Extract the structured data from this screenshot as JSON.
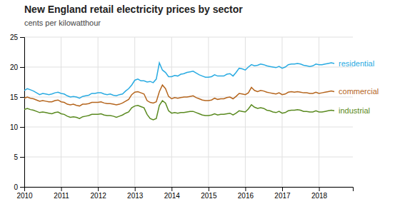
{
  "chart_data": {
    "type": "line",
    "title": "New England retail electricity prices by sector",
    "subtitle": "cents per kilowatthour",
    "x": [
      2010,
      2010.0833333333,
      2010.1666666667,
      2010.25,
      2010.3333333333,
      2010.4166666667,
      2010.5,
      2010.5833333333,
      2010.6666666667,
      2010.75,
      2010.8333333333,
      2010.9166666667,
      2011,
      2011.0833333333,
      2011.1666666667,
      2011.25,
      2011.3333333333,
      2011.4166666667,
      2011.5,
      2011.5833333333,
      2011.6666666667,
      2011.75,
      2011.8333333333,
      2011.9166666667,
      2012,
      2012.0833333333,
      2012.1666666667,
      2012.25,
      2012.3333333333,
      2012.4166666667,
      2012.5,
      2012.5833333333,
      2012.6666666667,
      2012.75,
      2012.8333333333,
      2012.9166666667,
      2013,
      2013.0833333333,
      2013.1666666667,
      2013.25,
      2013.3333333333,
      2013.4166666667,
      2013.5,
      2013.5833333333,
      2013.6666666667,
      2013.75,
      2013.8333333333,
      2013.9166666667,
      2014,
      2014.0833333333,
      2014.1666666667,
      2014.25,
      2014.3333333333,
      2014.4166666667,
      2014.5,
      2014.5833333333,
      2014.6666666667,
      2014.75,
      2014.8333333333,
      2014.9166666667,
      2015,
      2015.0833333333,
      2015.1666666667,
      2015.25,
      2015.3333333333,
      2015.4166666667,
      2015.5,
      2015.5833333333,
      2015.6666666667,
      2015.75,
      2015.8333333333,
      2015.9166666667,
      2016,
      2016.0833333333,
      2016.1666666667,
      2016.25,
      2016.3333333333,
      2016.4166666667,
      2016.5,
      2016.5833333333,
      2016.6666666667,
      2016.75,
      2016.8333333333,
      2016.9166666667,
      2017,
      2017.0833333333,
      2017.1666666667,
      2017.25,
      2017.3333333333,
      2017.4166666667,
      2017.5,
      2017.5833333333,
      2017.6666666667,
      2017.75,
      2017.8333333333,
      2017.9166666667,
      2018,
      2018.0833333333,
      2018.1666666667,
      2018.25,
      2018.3333333333,
      2018.4166666667
    ],
    "series": [
      {
        "name": "residential",
        "color": "#29abe2",
        "values": [
          16.1,
          16.4,
          16.2,
          16.0,
          15.7,
          15.4,
          15.6,
          15.5,
          15.4,
          15.5,
          15.7,
          15.8,
          15.6,
          15.5,
          15.2,
          15.0,
          15.1,
          15.0,
          14.8,
          15.1,
          15.2,
          15.3,
          15.6,
          15.6,
          15.7,
          15.7,
          15.5,
          15.4,
          15.5,
          15.3,
          15.2,
          15.4,
          15.5,
          16.0,
          16.4,
          17.0,
          17.8,
          18.0,
          17.7,
          17.7,
          17.5,
          17.6,
          17.4,
          18.0,
          20.7,
          19.5,
          19.1,
          18.4,
          18.4,
          18.6,
          18.5,
          18.8,
          18.9,
          19.1,
          19.2,
          19.3,
          19.0,
          18.7,
          18.5,
          18.3,
          18.3,
          18.4,
          18.7,
          18.5,
          18.5,
          18.5,
          18.8,
          18.9,
          18.5,
          19.1,
          19.8,
          19.7,
          19.5,
          20.0,
          20.4,
          20.2,
          20.3,
          20.5,
          20.4,
          20.2,
          20.1,
          20.0,
          19.9,
          20.1,
          19.8,
          20.0,
          20.4,
          20.5,
          20.5,
          20.6,
          20.5,
          20.3,
          20.2,
          20.1,
          20.2,
          20.5,
          20.4,
          20.4,
          20.5,
          20.6,
          20.7,
          20.6
        ]
      },
      {
        "name": "commercial",
        "color": "#b5651d",
        "values": [
          14.8,
          15.0,
          14.8,
          14.7,
          14.5,
          14.3,
          14.4,
          14.3,
          14.2,
          14.2,
          14.4,
          14.5,
          14.2,
          14.1,
          13.8,
          13.7,
          13.8,
          13.6,
          13.5,
          13.8,
          13.8,
          13.9,
          14.1,
          14.1,
          14.1,
          14.2,
          14.0,
          13.9,
          13.9,
          13.8,
          13.7,
          13.8,
          14.0,
          14.3,
          14.6,
          15.4,
          15.8,
          15.9,
          15.7,
          15.5,
          14.4,
          14.1,
          14.0,
          14.2,
          15.9,
          17.0,
          16.4,
          15.1,
          14.7,
          14.9,
          14.8,
          14.9,
          15.0,
          15.0,
          15.1,
          15.2,
          14.9,
          14.7,
          14.5,
          14.4,
          14.4,
          14.5,
          14.8,
          14.6,
          14.7,
          14.7,
          14.9,
          15.0,
          14.7,
          15.1,
          15.6,
          15.5,
          15.4,
          15.7,
          16.6,
          16.1,
          15.9,
          16.1,
          16.0,
          15.8,
          15.7,
          15.6,
          15.5,
          15.7,
          15.4,
          15.5,
          15.8,
          15.9,
          15.8,
          15.9,
          15.8,
          15.7,
          15.7,
          15.6,
          15.6,
          15.8,
          15.6,
          15.7,
          15.8,
          15.9,
          16.0,
          15.9
        ]
      },
      {
        "name": "industrial",
        "color": "#5a8a20",
        "values": [
          12.9,
          13.1,
          12.9,
          12.8,
          12.6,
          12.4,
          12.5,
          12.4,
          12.3,
          12.2,
          12.4,
          12.5,
          12.2,
          12.1,
          11.8,
          11.6,
          11.7,
          11.6,
          11.4,
          11.7,
          11.8,
          11.9,
          12.1,
          12.1,
          12.1,
          12.2,
          12.0,
          11.9,
          11.9,
          11.8,
          11.6,
          11.8,
          12.0,
          12.3,
          12.5,
          13.2,
          13.5,
          13.6,
          13.4,
          13.2,
          12.1,
          11.4,
          11.2,
          11.4,
          13.6,
          14.4,
          14.0,
          12.7,
          12.3,
          12.4,
          12.3,
          12.4,
          12.4,
          12.5,
          12.6,
          12.6,
          12.4,
          12.2,
          12.0,
          11.9,
          11.9,
          12.0,
          12.2,
          12.0,
          12.1,
          12.1,
          12.2,
          12.3,
          12.0,
          12.3,
          12.7,
          12.6,
          12.5,
          13.0,
          13.7,
          13.3,
          13.1,
          13.2,
          13.1,
          12.8,
          12.7,
          12.5,
          12.4,
          12.6,
          12.3,
          12.4,
          12.7,
          12.8,
          12.8,
          12.9,
          12.8,
          12.6,
          12.6,
          12.5,
          12.5,
          12.7,
          12.5,
          12.5,
          12.6,
          12.7,
          12.8,
          12.7
        ]
      }
    ],
    "xlim": [
      2010.0,
      2018.92
    ],
    "xticks": [
      2010,
      2011,
      2012,
      2013,
      2014,
      2015,
      2016,
      2017,
      2018
    ],
    "ylim": [
      0,
      25
    ],
    "yticks": [
      0,
      5,
      10,
      15,
      20,
      25
    ],
    "grid": true
  }
}
